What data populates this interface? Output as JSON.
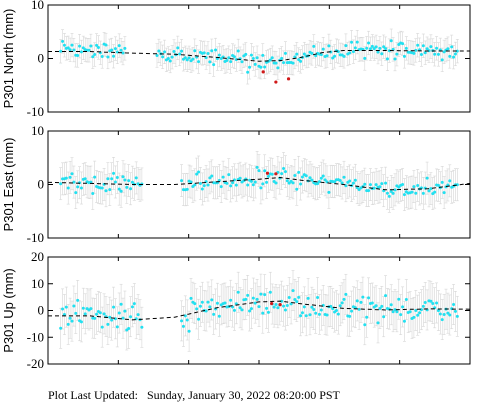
{
  "footer": {
    "label": "Plot Last Updated:",
    "timestamp": "Sunday, January 30, 2022 08:20:00 PST"
  },
  "colors": {
    "points": "#22e0f0",
    "outliers": "#d01818",
    "error_bars": "#d6d6d6",
    "trend": "#000000"
  },
  "chart_data": [
    {
      "type": "scatter",
      "ylabel": "P301 North (mm)",
      "ylim": [
        -10,
        10
      ],
      "yticks": [
        -10,
        0,
        10
      ],
      "x_domain": [
        0,
        1
      ],
      "gaps": [
        [
          0.185,
          0.255
        ]
      ],
      "error_bar_mm": 2.2,
      "trend": [
        [
          0.0,
          1.3
        ],
        [
          0.1,
          1.3
        ],
        [
          0.2,
          1.0
        ],
        [
          0.3,
          0.8
        ],
        [
          0.4,
          0.2
        ],
        [
          0.5,
          -0.5
        ],
        [
          0.55,
          -0.4
        ],
        [
          0.6,
          0.2
        ],
        [
          0.65,
          1.1
        ],
        [
          0.7,
          1.5
        ],
        [
          0.8,
          1.5
        ],
        [
          0.9,
          1.4
        ],
        [
          1.0,
          1.4
        ]
      ],
      "noise_mm": 1.1,
      "outliers": [
        [
          0.51,
          -2.5
        ],
        [
          0.54,
          -4.4
        ],
        [
          0.57,
          -3.8
        ]
      ]
    },
    {
      "type": "scatter",
      "ylabel": "P301 East (mm)",
      "ylim": [
        -10,
        10
      ],
      "yticks": [
        -10,
        0,
        10
      ],
      "x_domain": [
        0,
        1
      ],
      "gaps": [
        [
          0.225,
          0.315
        ]
      ],
      "error_bar_mm": 3.0,
      "trend": [
        [
          0.0,
          0.4
        ],
        [
          0.2,
          0.0
        ],
        [
          0.3,
          0.0
        ],
        [
          0.4,
          0.5
        ],
        [
          0.5,
          1.0
        ],
        [
          0.55,
          1.3
        ],
        [
          0.6,
          0.8
        ],
        [
          0.7,
          0.0
        ],
        [
          0.8,
          -1.0
        ],
        [
          0.9,
          -0.8
        ],
        [
          1.0,
          0.2
        ]
      ],
      "noise_mm": 1.2,
      "outliers": [
        [
          0.52,
          2.1
        ],
        [
          0.54,
          2.0
        ]
      ]
    },
    {
      "type": "scatter",
      "ylabel": "P301 Up (mm)",
      "ylim": [
        -20,
        20
      ],
      "yticks": [
        -20,
        -10,
        0,
        10,
        20
      ],
      "x_domain": [
        0,
        1
      ],
      "gaps": [
        [
          0.225,
          0.315
        ]
      ],
      "error_bar_mm": 7.5,
      "trend": [
        [
          0.0,
          -2.0
        ],
        [
          0.1,
          -2.0
        ],
        [
          0.2,
          -3.5
        ],
        [
          0.3,
          -2.5
        ],
        [
          0.4,
          1.0
        ],
        [
          0.5,
          3.2
        ],
        [
          0.55,
          3.5
        ],
        [
          0.6,
          2.5
        ],
        [
          0.7,
          0.8
        ],
        [
          0.8,
          0.2
        ],
        [
          0.9,
          0.6
        ],
        [
          1.0,
          0.5
        ]
      ],
      "noise_mm": 3.6,
      "outliers": [
        [
          0.53,
          2.6
        ],
        [
          0.55,
          2.2
        ]
      ]
    }
  ]
}
